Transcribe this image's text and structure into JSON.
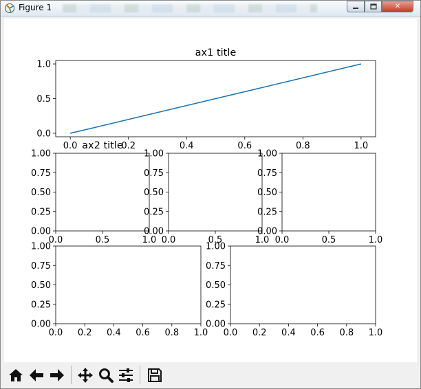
{
  "window": {
    "title": "Figure 1",
    "close_label": "✕",
    "min_label": "▭",
    "max_label": "□"
  },
  "toolbar": {
    "buttons": [
      {
        "name": "home-button",
        "icon": "home-icon"
      },
      {
        "name": "back-button",
        "icon": "arrow-left-icon"
      },
      {
        "name": "forward-button",
        "icon": "arrow-right-icon"
      },
      {
        "name": "pan-button",
        "icon": "move-icon"
      },
      {
        "name": "zoom-button",
        "icon": "magnifier-icon"
      },
      {
        "name": "subplots-button",
        "icon": "sliders-icon"
      },
      {
        "name": "save-button",
        "icon": "save-icon"
      }
    ]
  },
  "chart_data": [
    {
      "type": "line",
      "title": "ax1 title",
      "x": [
        0,
        1
      ],
      "series": [
        {
          "values": [
            0,
            1
          ]
        }
      ],
      "xlim": [
        -0.05,
        1.05
      ],
      "ylim": [
        -0.05,
        1.05
      ],
      "xticks": [
        "0.0",
        "0.2",
        "0.4",
        "0.6",
        "0.8",
        "1.0"
      ],
      "yticks": [
        "0.0",
        "0.5",
        "1.0"
      ],
      "line_color": "#1f77b4"
    },
    {
      "type": "line",
      "title": "ax2 title",
      "xlim": [
        0,
        1
      ],
      "ylim": [
        0,
        1
      ],
      "xticks": [
        "0.0",
        "0.5",
        "1.0"
      ],
      "yticks": [
        "0.00",
        "0.25",
        "0.50",
        "0.75",
        "1.00"
      ]
    },
    {
      "type": "line",
      "title": "",
      "xlim": [
        0,
        1
      ],
      "ylim": [
        0,
        1
      ],
      "xticks": [
        "0.0",
        "0.5",
        "1.0"
      ],
      "yticks": [
        "0.00",
        "0.25",
        "0.50",
        "0.75",
        "1.00"
      ]
    },
    {
      "type": "line",
      "title": "",
      "xlim": [
        0,
        1
      ],
      "ylim": [
        0,
        1
      ],
      "xticks": [
        "0.0",
        "0.5",
        "1.0"
      ],
      "yticks": [
        "0.00",
        "0.25",
        "0.50",
        "0.75",
        "1.00"
      ]
    },
    {
      "type": "line",
      "title": "",
      "xlim": [
        0,
        1
      ],
      "ylim": [
        0,
        1
      ],
      "xticks": [
        "0.0",
        "0.2",
        "0.4",
        "0.6",
        "0.8",
        "1.0"
      ],
      "yticks": [
        "0.00",
        "0.25",
        "0.50",
        "0.75",
        "1.00"
      ]
    },
    {
      "type": "line",
      "title": "",
      "xlim": [
        0,
        1
      ],
      "ylim": [
        0,
        1
      ],
      "xticks": [
        "0.0",
        "0.2",
        "0.4",
        "0.6",
        "0.8",
        "1.0"
      ],
      "yticks": [
        "0.00",
        "0.25",
        "0.50",
        "0.75",
        "1.00"
      ]
    }
  ]
}
